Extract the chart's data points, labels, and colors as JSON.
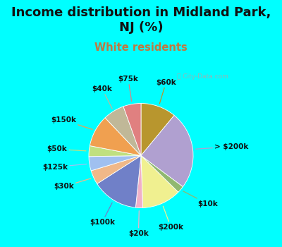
{
  "title": "Income distribution in Midland Park,\nNJ (%)",
  "subtitle": "White residents",
  "background_color": "#00ffff",
  "watermark": "City-Data.com",
  "slices": [
    {
      "label": "$60k",
      "value": 10,
      "color": "#b8962e"
    },
    {
      "label": "> $200k",
      "value": 22,
      "color": "#b0a0d0"
    },
    {
      "label": "$10k",
      "value": 2,
      "color": "#90b870"
    },
    {
      "label": "$200k",
      "value": 11,
      "color": "#f0f090"
    },
    {
      "label": "$20k",
      "value": 2,
      "color": "#f0b0c8"
    },
    {
      "label": "$100k",
      "value": 13,
      "color": "#7080c8"
    },
    {
      "label": "$30k",
      "value": 4,
      "color": "#f0b888"
    },
    {
      "label": "$125k",
      "value": 4,
      "color": "#a0c0f0"
    },
    {
      "label": "$50k",
      "value": 3,
      "color": "#c0e080"
    },
    {
      "label": "$150k",
      "value": 9,
      "color": "#f0a050"
    },
    {
      "label": "$40k",
      "value": 6,
      "color": "#c0b898"
    },
    {
      "label": "$75k",
      "value": 5,
      "color": "#e08080"
    }
  ],
  "label_fontsize": 7.5,
  "title_fontsize": 13,
  "subtitle_fontsize": 10.5,
  "title_color": "#111111",
  "subtitle_color": "#c07840"
}
